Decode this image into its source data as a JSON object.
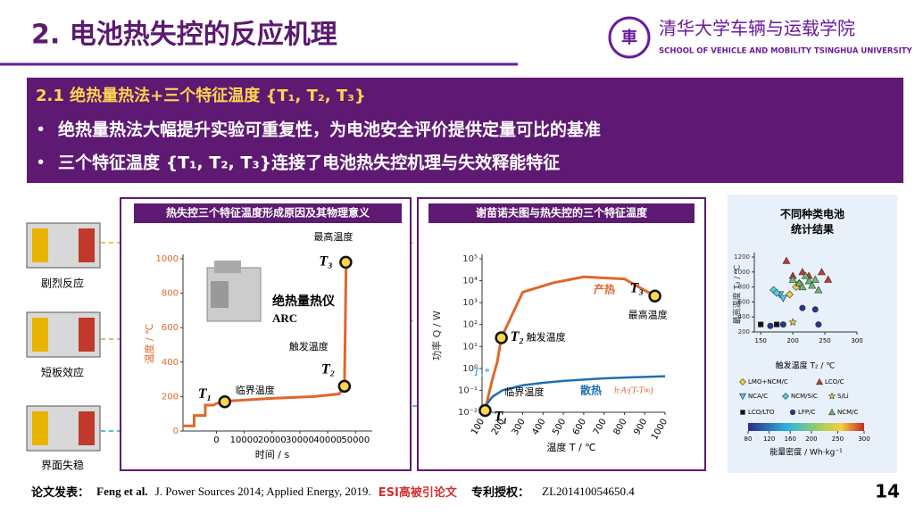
{
  "header": {
    "title": "2. 电池热失控的反应机理",
    "school_cn": "清华大学车辆与运载学院",
    "school_en": "SCHOOL OF VEHICLE AND MOBILITY TSINGHUA UNIVERSITY"
  },
  "box": {
    "heading": "2.1 绝热量热法+三个特征温度 {T₁, T₂, T₃}",
    "bullets": [
      "绝热量热法大幅提升实验可重复性，为电池安全评价提供定量可比的基准",
      "三个特征温度 {T₁, T₂, T₃}连接了电池热失控机理与失效释能特征"
    ]
  },
  "mechanisms": [
    "剧烈反应",
    "短板效应",
    "界面失稳"
  ],
  "chart_data": [
    {
      "type": "line",
      "title": "热失控三个特征温度形成原因及其物理意义",
      "ylabel": "温度 / ℃",
      "xlabel": "时间 / s",
      "xlim": [
        -12000,
        56000
      ],
      "ylim": [
        0,
        1000
      ],
      "xticks": [
        0,
        10000,
        20000,
        30000,
        40000,
        50000
      ],
      "yticks": [
        0,
        200,
        400,
        600,
        800,
        1000
      ],
      "series": [
        {
          "color": "#e0672a",
          "x": [
            -12000,
            -8000,
            -8000,
            -4000,
            -4000,
            -1000,
            0,
            5000,
            20000,
            35000,
            44000,
            46000,
            46300,
            46600
          ],
          "values": [
            30,
            30,
            90,
            90,
            150,
            150,
            160,
            175,
            190,
            200,
            215,
            250,
            600,
            980
          ]
        }
      ],
      "points": [
        {
          "label": "T₁",
          "name": "临界温度",
          "x": 3000,
          "y": 170
        },
        {
          "label": "T₂",
          "name": "触发温度",
          "x": 46000,
          "y": 260
        },
        {
          "label": "T₃",
          "name": "最高温度",
          "x": 46500,
          "y": 980
        }
      ],
      "annotations": [
        "绝热量热仪",
        "ARC"
      ]
    },
    {
      "type": "line",
      "title": "谢苗诺夫图与热失控的三个特征温度",
      "ylabel": "功率 Q / W",
      "xlabel": "温度 T / ℃",
      "log_y": true,
      "xlim": [
        100,
        1000
      ],
      "ylim": [
        0.01,
        100000
      ],
      "xticks": [
        100,
        200,
        300,
        400,
        500,
        600,
        700,
        800,
        900,
        1000
      ],
      "yticks": [
        {
          "value": 0.01,
          "label": "10⁻²"
        },
        {
          "value": 0.1,
          "label": "10⁻¹"
        },
        {
          "value": 1,
          "label": "10⁰"
        },
        {
          "value": 10,
          "label": "10¹"
        },
        {
          "value": 100,
          "label": "10²"
        },
        {
          "value": 1000,
          "label": "10³"
        },
        {
          "value": 10000,
          "label": "10⁴"
        },
        {
          "value": 100000,
          "label": "10⁵"
        }
      ],
      "series": [
        {
          "name": "产热",
          "color": "#e0672a",
          "x": [
            115,
            130,
            150,
            175,
            195,
            300,
            450,
            600,
            800,
            950
          ],
          "values": [
            0.012,
            0.05,
            0.3,
            2,
            25,
            3000,
            8000,
            15000,
            12000,
            2000
          ]
        },
        {
          "name": "散热",
          "color": "#1f6fb2",
          "x": [
            100,
            150,
            200,
            300,
            400,
            500,
            600,
            700,
            800,
            900,
            1000
          ],
          "values": [
            0.012,
            0.05,
            0.1,
            0.17,
            0.22,
            0.27,
            0.31,
            0.35,
            0.38,
            0.41,
            0.44
          ]
        }
      ],
      "points": [
        {
          "label": "T₁",
          "name": "临界温度",
          "x": 115,
          "y": 0.012
        },
        {
          "label": "T₂",
          "name": "触发温度",
          "x": 195,
          "y": 25
        },
        {
          "label": "T₃",
          "name": "最高温度",
          "x": 950,
          "y": 2000
        }
      ],
      "annotations": [
        "T₁*",
        "h·A·(T-T∞)"
      ]
    },
    {
      "type": "scatter",
      "title": "不同种类电池统计结果",
      "xlabel": "触发温度 T₂ / ℃",
      "ylabel": "最高温度 T₃ / ℃",
      "xlim": [
        140,
        300
      ],
      "ylim": [
        200,
        1200
      ],
      "xticks": [
        150,
        200,
        250,
        300
      ],
      "yticks": [
        200,
        400,
        600,
        800,
        1000,
        1200
      ],
      "series": [
        {
          "name": "LMO+NCM/C",
          "marker": "diamond",
          "color": "#f4d03f",
          "x": [
            195,
            205,
            210
          ],
          "values": [
            700,
            800,
            850
          ]
        },
        {
          "name": "LCO/C",
          "marker": "triangle",
          "color": "#c0392b",
          "x": [
            190,
            200,
            215,
            225,
            245,
            255
          ],
          "values": [
            1150,
            950,
            1000,
            950,
            1000,
            900
          ]
        },
        {
          "name": "NCA/C",
          "marker": "triangle-down",
          "color": "#4fc3f7",
          "x": [
            180,
            185
          ],
          "values": [
            700,
            650
          ]
        },
        {
          "name": "NCM/SiC",
          "marker": "diamond",
          "color": "#4dd0e1",
          "x": [
            170,
            175
          ],
          "values": [
            760,
            720
          ]
        },
        {
          "name": "S/Li",
          "marker": "star",
          "color": "#f4d03f",
          "x": [
            200
          ],
          "values": [
            330
          ]
        },
        {
          "name": "LCO/LTO",
          "marker": "square",
          "color": "#111111",
          "x": [
            150,
            175
          ],
          "values": [
            300,
            300
          ]
        },
        {
          "name": "LFP/C",
          "marker": "circle",
          "color": "#283593",
          "x": [
            165,
            185,
            215,
            235,
            240
          ],
          "values": [
            280,
            300,
            520,
            500,
            300
          ]
        },
        {
          "name": "NCM/C",
          "marker": "triangle",
          "color": "#66bb6a",
          "x": [
            200,
            210,
            215,
            220,
            225,
            230,
            235,
            240
          ],
          "values": [
            900,
            850,
            800,
            950,
            880,
            820,
            900,
            760
          ]
        }
      ],
      "colorbar": {
        "label": "能量密度 / Wh·kg⁻¹",
        "lim": [
          80,
          300
        ],
        "ticks": [
          80,
          120,
          160,
          200,
          250,
          300
        ]
      }
    }
  ],
  "footer": {
    "label1": "论文发表：",
    "authors": "Feng et al.",
    "refs": "J. Power Sources 2014; Applied Energy, 2019.",
    "esi": "ESI高被引论文",
    "label2": "专利授权：",
    "patent": "ZL201410054650.4"
  },
  "page_number": "14"
}
